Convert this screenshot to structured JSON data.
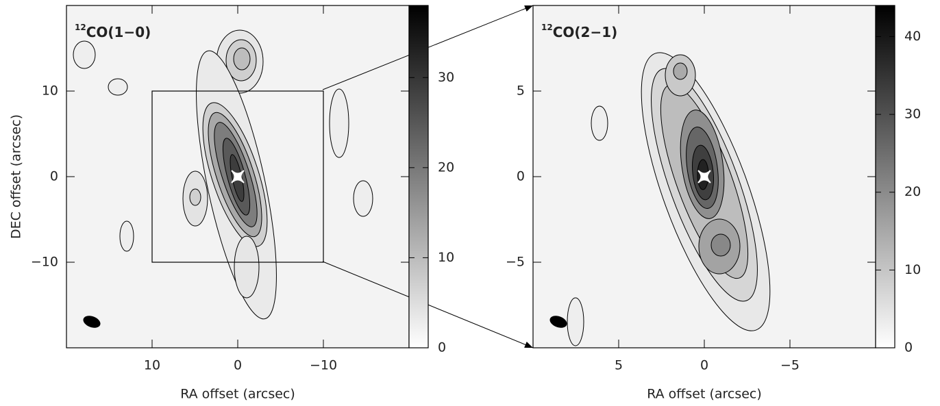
{
  "chart_data": [
    {
      "type": "contour",
      "title_superscript": "12",
      "title": "CO(1−0)",
      "x_label": "RA offset (arcsec)",
      "y_label": "DEC offset (arcsec)",
      "xlim": [
        20,
        -20
      ],
      "ylim": [
        -20,
        20
      ],
      "xticks": [
        10,
        0,
        {
          "value": -10,
          "label": "−10"
        }
      ],
      "yticks": [
        10,
        0,
        {
          "value": -10,
          "label": "−10"
        }
      ],
      "clim": [
        0,
        38
      ],
      "cticks": [
        0,
        10,
        20,
        30
      ],
      "colors": [
        "#ffffff",
        "#000000"
      ],
      "source": {
        "x": 0,
        "y": 0
      },
      "inset_box": {
        "x": [
          10,
          -10
        ],
        "y": [
          -10,
          10
        ]
      }
    },
    {
      "type": "contour",
      "title_superscript": "12",
      "title": "CO(2−1)",
      "x_label": "RA offset (arcsec)",
      "xlim": [
        10,
        -10
      ],
      "ylim": [
        -10,
        10
      ],
      "xticks": [
        5,
        0,
        {
          "value": -5,
          "label": "−5"
        }
      ],
      "yticks": [
        5,
        0,
        {
          "value": -5,
          "label": "−5"
        }
      ],
      "clim": [
        0,
        44
      ],
      "cticks": [
        0,
        10,
        20,
        30,
        40
      ],
      "colors": [
        "#ffffff",
        "#000000"
      ],
      "source": {
        "x": 0,
        "y": 0
      }
    }
  ]
}
